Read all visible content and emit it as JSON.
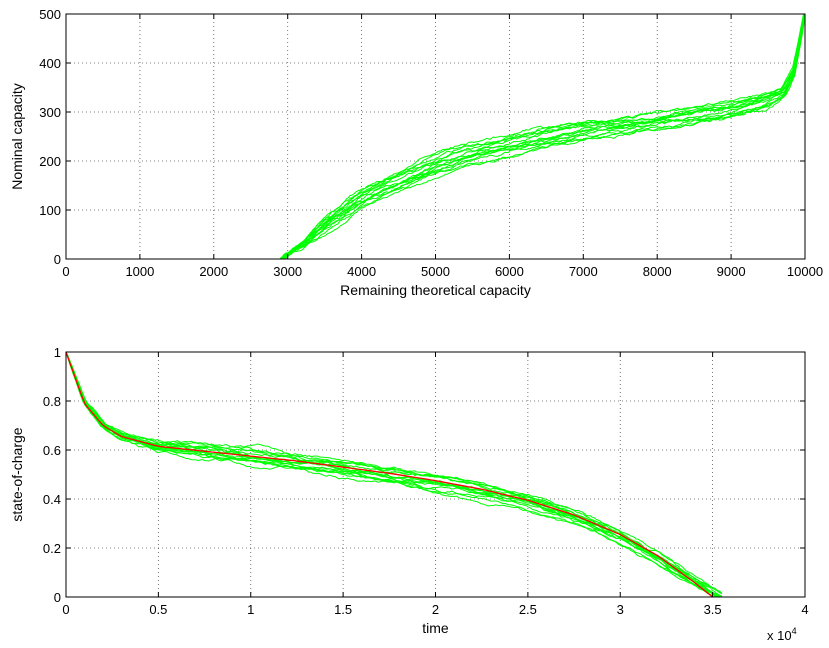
{
  "chart_data": [
    {
      "type": "line",
      "title": "",
      "xlabel": "Remaining theoretical capacity",
      "ylabel": "Nominal capacity",
      "xlim": [
        0,
        10000
      ],
      "ylim": [
        0,
        500
      ],
      "xticks": [
        0,
        1000,
        2000,
        3000,
        4000,
        5000,
        6000,
        7000,
        8000,
        9000,
        10000
      ],
      "yticks": [
        0,
        100,
        200,
        300,
        400,
        500
      ],
      "xtick_labels": [
        "0",
        "1000",
        "2000",
        "3000",
        "4000",
        "5000",
        "6000",
        "7000",
        "8000",
        "9000",
        "10000"
      ],
      "ytick_labels": [
        "0",
        "100",
        "200",
        "300",
        "400",
        "500"
      ],
      "grid": true,
      "colors": {
        "sims": "#00ff00"
      },
      "series": [
        {
          "kind": "simulation-band",
          "color": "#00ff00",
          "x": [
            2900,
            3200,
            3500,
            4000,
            4500,
            5000,
            5500,
            6000,
            6500,
            7000,
            7500,
            8000,
            8500,
            9000,
            9400,
            9700,
            9850,
            10000
          ],
          "y": [
            0,
            30,
            70,
            125,
            160,
            195,
            220,
            235,
            250,
            265,
            275,
            285,
            295,
            305,
            320,
            340,
            380,
            500
          ]
        }
      ]
    },
    {
      "type": "line",
      "title": "",
      "xlabel": "time",
      "ylabel": "state-of-charge",
      "x_multiplier_label": "x 10",
      "x_multiplier_exp": "4",
      "xlim": [
        0,
        4
      ],
      "ylim": [
        0,
        1
      ],
      "xticks": [
        0,
        0.5,
        1,
        1.5,
        2,
        2.5,
        3,
        3.5,
        4
      ],
      "yticks": [
        0,
        0.2,
        0.4,
        0.6,
        0.8,
        1
      ],
      "xtick_labels": [
        "0",
        "0.5",
        "1",
        "1.5",
        "2",
        "2.5",
        "3",
        "3.5",
        "4"
      ],
      "ytick_labels": [
        "0",
        "0.2",
        "0.4",
        "0.6",
        "0.8",
        "1"
      ],
      "grid": true,
      "colors": {
        "sims": "#00ff00",
        "mean": "#ff0000"
      },
      "series": [
        {
          "kind": "simulation-band",
          "color": "#00ff00",
          "x": [
            0,
            0.1,
            0.2,
            0.3,
            0.5,
            0.75,
            1,
            1.25,
            1.5,
            1.75,
            2,
            2.25,
            2.5,
            2.75,
            3,
            3.2,
            3.4,
            3.55
          ],
          "y": [
            1,
            0.8,
            0.7,
            0.655,
            0.615,
            0.595,
            0.575,
            0.555,
            0.53,
            0.505,
            0.475,
            0.44,
            0.395,
            0.335,
            0.255,
            0.17,
            0.07,
            0
          ]
        },
        {
          "kind": "mean",
          "color": "#ff0000",
          "x": [
            0,
            0.1,
            0.2,
            0.3,
            0.5,
            0.75,
            1,
            1.25,
            1.5,
            1.75,
            2,
            2.25,
            2.5,
            2.75,
            3,
            3.2,
            3.4,
            3.5
          ],
          "y": [
            1,
            0.79,
            0.7,
            0.655,
            0.615,
            0.595,
            0.575,
            0.555,
            0.53,
            0.505,
            0.475,
            0.44,
            0.395,
            0.335,
            0.255,
            0.17,
            0.06,
            0
          ]
        }
      ]
    }
  ]
}
